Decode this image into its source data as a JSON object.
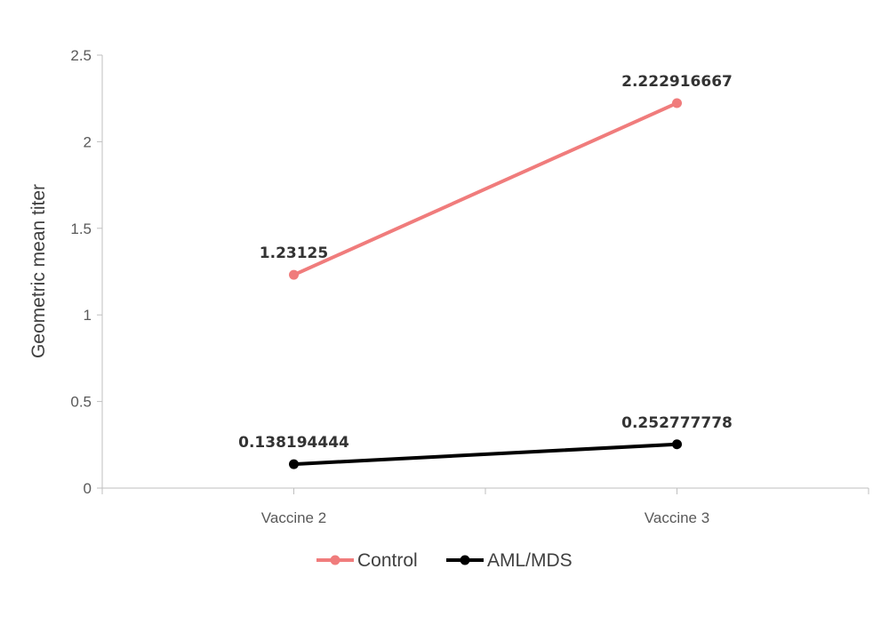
{
  "chart_data": {
    "type": "line",
    "categories": [
      "Vaccine 2",
      "Vaccine 3"
    ],
    "series": [
      {
        "name": "Control",
        "values": [
          1.23125,
          2.222916667
        ],
        "labels": [
          "1.23125",
          "2.222916667"
        ],
        "color": "#F07C7C"
      },
      {
        "name": "AML/MDS",
        "values": [
          0.138194444,
          0.252777778
        ],
        "labels": [
          "0.138194444",
          "0.252777778"
        ],
        "color": "#000000"
      }
    ],
    "ylabel": "Geometric mean titer",
    "xlabel": "",
    "ylim": [
      0,
      2.5
    ],
    "yticks": [
      "0",
      "0.5",
      "1",
      "1.5",
      "2",
      "2.5"
    ],
    "grid": false,
    "legend_position": "bottom"
  }
}
